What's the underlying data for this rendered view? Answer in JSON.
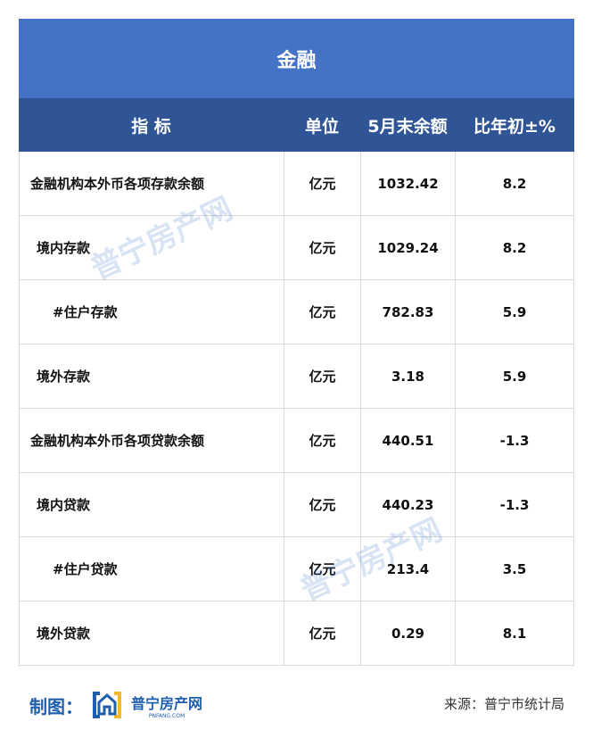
{
  "title": "金融",
  "headers": [
    "指 标",
    "单位",
    "5月末余额",
    "比年初±%"
  ],
  "rows": [
    {
      "name": "金融机构本外币各项存款余额",
      "unit": "亿元",
      "balance": "1032.42",
      "change": "8.2",
      "indent": 0
    },
    {
      "name": "境内存款",
      "unit": "亿元",
      "balance": "1029.24",
      "change": "8.2",
      "indent": 1
    },
    {
      "name": "#住户存款",
      "unit": "亿元",
      "balance": "782.83",
      "change": "5.9",
      "indent": 2
    },
    {
      "name": "境外存款",
      "unit": "亿元",
      "balance": "3.18",
      "change": "5.9",
      "indent": 1
    },
    {
      "name": "金融机构本外币各项贷款余额",
      "unit": "亿元",
      "balance": "440.51",
      "change": "-1.3",
      "indent": 0
    },
    {
      "name": "境内贷款",
      "unit": "亿元",
      "balance": "440.23",
      "change": "-1.3",
      "indent": 1
    },
    {
      "name": "#住户贷款",
      "unit": "亿元",
      "balance": "213.4",
      "change": "3.5",
      "indent": 2
    },
    {
      "name": "境外贷款",
      "unit": "亿元",
      "balance": "0.29",
      "change": "8.1",
      "indent": 1
    }
  ],
  "footer": {
    "made_by": "制图：",
    "logo_text": "普宁房产网",
    "logo_sub": "PNFANG.COM",
    "source": "来源：普宁市统计局"
  },
  "watermark": {
    "text": "普宁房产网",
    "sub": "PNFANG.COM"
  },
  "colors": {
    "title_bg": "#4472c4",
    "header_bg": "#2f5597",
    "made_by": "#1f5fad"
  }
}
